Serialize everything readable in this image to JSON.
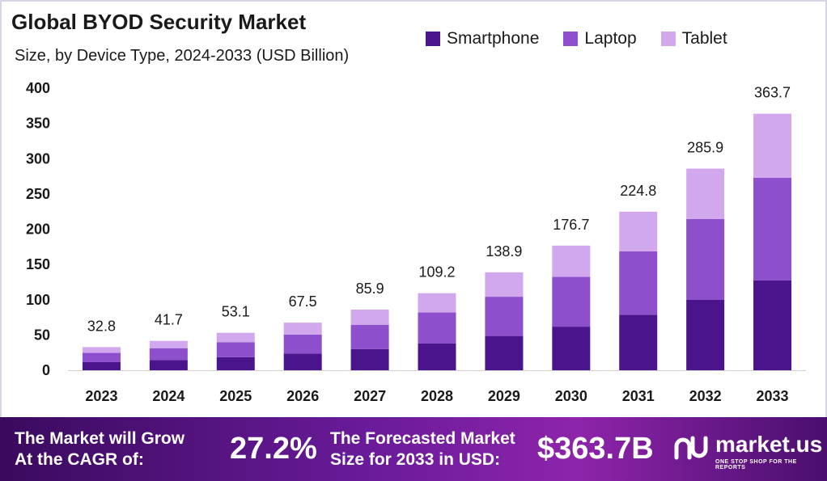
{
  "chart_data": {
    "type": "bar",
    "stacked": true,
    "title": "Global BYOD Security Market",
    "subtitle": "Size, by Device Type, 2024-2033 (USD Billion)",
    "categories": [
      "2023",
      "2024",
      "2025",
      "2026",
      "2027",
      "2028",
      "2029",
      "2030",
      "2031",
      "2032",
      "2033"
    ],
    "series": [
      {
        "name": "Smartphone",
        "color": "#4a148c",
        "values": [
          11.5,
          14.6,
          18.6,
          23.6,
          30.1,
          38.2,
          48.6,
          61.8,
          78.7,
          100.1,
          127.3
        ]
      },
      {
        "name": "Laptop",
        "color": "#8e4fcc",
        "values": [
          13.1,
          16.7,
          21.2,
          27.0,
          34.4,
          43.7,
          55.6,
          70.7,
          89.9,
          114.4,
          145.5
        ]
      },
      {
        "name": "Tablet",
        "color": "#d1a8ee",
        "values": [
          8.2,
          10.4,
          13.3,
          16.9,
          21.5,
          27.3,
          34.7,
          44.2,
          56.2,
          71.4,
          90.9
        ]
      }
    ],
    "totals": [
      "32.8",
      "41.7",
      "53.1",
      "67.5",
      "85.9",
      "109.2",
      "138.9",
      "176.7",
      "224.8",
      "285.9",
      "363.7"
    ],
    "ylim": [
      0,
      400
    ],
    "yticks": [
      0,
      50,
      100,
      150,
      200,
      250,
      300,
      350,
      400
    ],
    "legend": "top-right",
    "grid": false
  },
  "footer": {
    "cagr_label_line1": "The Market will Grow",
    "cagr_label_line2": "At the CAGR of:",
    "cagr_value": "27.2%",
    "forecast_label_line1": "The Forecasted Market",
    "forecast_label_line2": "Size for 2033 in USD:",
    "forecast_value": "$363.7B",
    "brand": "market.us",
    "brand_tagline": "ONE STOP SHOP FOR THE REPORTS"
  }
}
